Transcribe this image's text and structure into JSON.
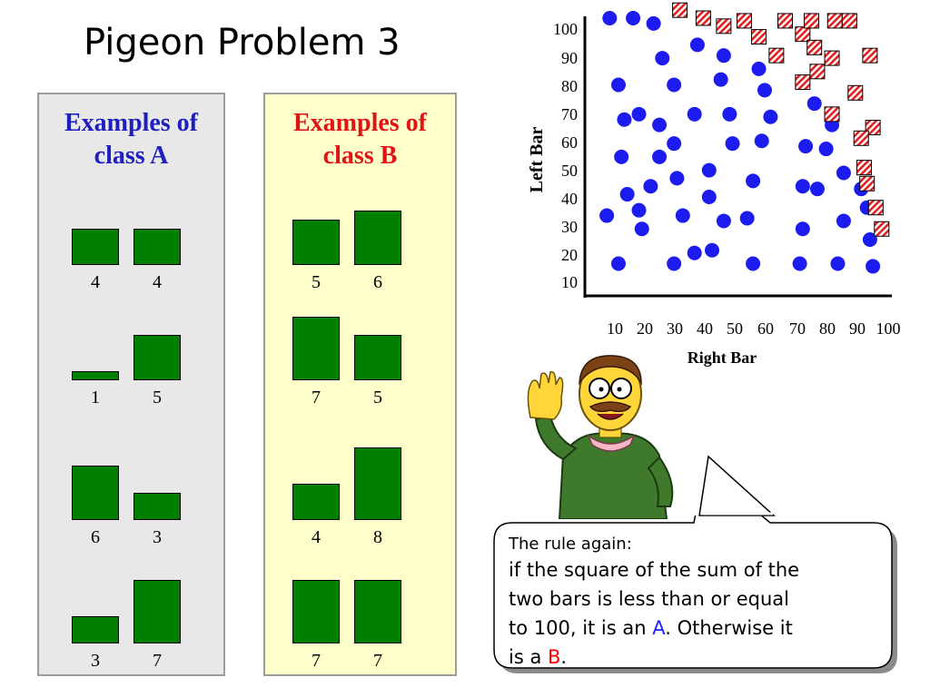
{
  "slide": {
    "title": "Pigeon Problem 3"
  },
  "class_a": {
    "title_line1": "Examples of",
    "title_line2": "class A",
    "examples": [
      {
        "left": 4,
        "right": 4,
        "left_label": "4",
        "right_label": "4"
      },
      {
        "left": 1,
        "right": 5,
        "left_label": "1",
        "right_label": "5"
      },
      {
        "left": 6,
        "right": 3,
        "left_label": "6",
        "right_label": "3"
      },
      {
        "left": 3,
        "right": 7,
        "left_label": "3",
        "right_label": "7"
      }
    ]
  },
  "class_b": {
    "title_line1": "Examples of",
    "title_line2": "class B",
    "examples": [
      {
        "left": 5,
        "right": 6,
        "left_label": "5",
        "right_label": "6"
      },
      {
        "left": 7,
        "right": 5,
        "left_label": "7",
        "right_label": "5"
      },
      {
        "left": 4,
        "right": 8,
        "left_label": "4",
        "right_label": "8"
      },
      {
        "left": 7,
        "right": 7,
        "left_label": "7",
        "right_label": "7"
      }
    ]
  },
  "chart_data": {
    "type": "scatter",
    "xlabel": "Right Bar",
    "ylabel": "Left Bar",
    "xlim": [
      0,
      100
    ],
    "ylim": [
      0,
      100
    ],
    "x_ticks": [
      "10",
      "20",
      "30",
      "40",
      "50",
      "60",
      "70",
      "80",
      "90",
      "100"
    ],
    "y_ticks": [
      "10",
      "20",
      "30",
      "40",
      "50",
      "60",
      "70",
      "80",
      "90",
      "100"
    ],
    "colors": {
      "class_a": "#1c1cee",
      "class_b": "#e02020"
    },
    "class_a_points": [
      [
        6,
        100
      ],
      [
        14,
        100
      ],
      [
        21,
        98
      ],
      [
        24,
        85
      ],
      [
        28,
        75
      ],
      [
        36,
        90
      ],
      [
        45,
        86
      ],
      [
        44,
        77
      ],
      [
        57,
        81
      ],
      [
        59,
        73
      ],
      [
        76,
        68
      ],
      [
        82,
        60
      ],
      [
        9,
        75
      ],
      [
        11,
        62
      ],
      [
        16,
        64
      ],
      [
        23,
        60
      ],
      [
        28,
        53
      ],
      [
        35,
        64
      ],
      [
        47,
        64
      ],
      [
        48,
        53
      ],
      [
        58,
        54
      ],
      [
        61,
        63
      ],
      [
        73,
        52
      ],
      [
        80,
        51
      ],
      [
        86,
        42
      ],
      [
        10,
        48
      ],
      [
        23,
        48
      ],
      [
        29,
        40
      ],
      [
        20,
        37
      ],
      [
        12,
        34
      ],
      [
        40,
        43
      ],
      [
        40,
        33
      ],
      [
        55,
        39
      ],
      [
        72,
        37
      ],
      [
        77,
        36
      ],
      [
        92,
        36
      ],
      [
        5,
        26
      ],
      [
        16,
        28
      ],
      [
        17,
        21
      ],
      [
        31,
        26
      ],
      [
        45,
        24
      ],
      [
        53,
        25
      ],
      [
        72,
        21
      ],
      [
        86,
        24
      ],
      [
        94,
        29
      ],
      [
        95,
        17
      ],
      [
        9,
        8
      ],
      [
        28,
        8
      ],
      [
        35,
        12
      ],
      [
        41,
        13
      ],
      [
        55,
        8
      ],
      [
        71,
        8
      ],
      [
        84,
        8
      ],
      [
        96,
        7
      ]
    ],
    "class_b_points": [
      [
        30,
        103
      ],
      [
        38,
        100
      ],
      [
        45,
        97
      ],
      [
        52,
        99
      ],
      [
        57,
        93
      ],
      [
        66,
        99
      ],
      [
        72,
        94
      ],
      [
        75,
        99
      ],
      [
        83,
        99
      ],
      [
        88,
        99
      ],
      [
        63,
        86
      ],
      [
        76,
        89
      ],
      [
        82,
        85
      ],
      [
        95,
        86
      ],
      [
        77,
        80
      ],
      [
        72,
        76
      ],
      [
        90,
        72
      ],
      [
        82,
        64
      ],
      [
        96,
        59
      ],
      [
        92,
        55
      ],
      [
        93,
        44
      ],
      [
        94,
        38
      ],
      [
        97,
        29
      ],
      [
        99,
        21
      ]
    ]
  },
  "callout": {
    "line1": "The rule again:",
    "line2": "if the square of the sum of the",
    "line3": "two bars is less than or  equal",
    "line4_pre": "to 100, it is an ",
    "line4_a": "A",
    "line4_post": ". Otherwise it",
    "line5_pre": "is a ",
    "line5_b": "B",
    "line5_post": "."
  }
}
